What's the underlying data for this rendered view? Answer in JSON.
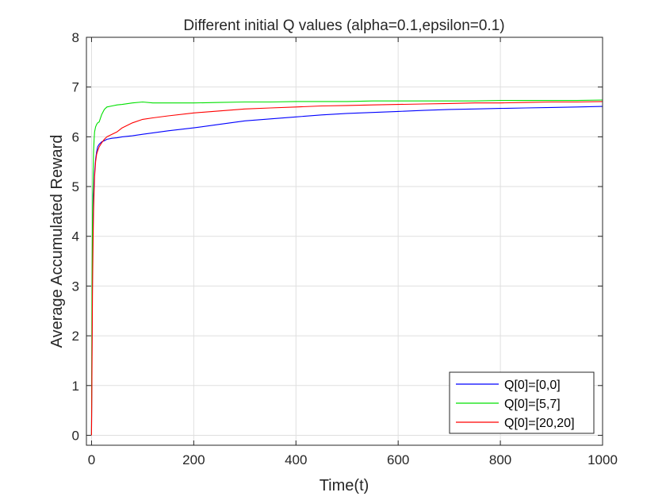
{
  "chart_data": {
    "type": "line",
    "title": "Different initial Q values (alpha=0.1,epsilon=0.1)",
    "xlabel": "Time(t)",
    "ylabel": "Average Accumulated Reward",
    "xlim": [
      -10,
      1000
    ],
    "ylim": [
      -0.2,
      8
    ],
    "xticks": [
      0,
      200,
      400,
      600,
      800,
      1000
    ],
    "yticks": [
      0,
      1,
      2,
      3,
      4,
      5,
      6,
      7,
      8
    ],
    "grid": true,
    "legend_position": "bottom-right",
    "series": [
      {
        "name": "Q[0]=[0,0]",
        "color": "#0000ff",
        "x": [
          0,
          1,
          2,
          3,
          4,
          5,
          6,
          8,
          10,
          12,
          15,
          20,
          25,
          30,
          40,
          50,
          60,
          80,
          100,
          120,
          150,
          200,
          250,
          300,
          350,
          400,
          450,
          500,
          550,
          600,
          650,
          700,
          750,
          800,
          850,
          900,
          950,
          1000
        ],
        "y": [
          0,
          2.0,
          3.4,
          4.3,
          4.8,
          5.1,
          5.3,
          5.55,
          5.7,
          5.8,
          5.85,
          5.9,
          5.92,
          5.95,
          5.97,
          5.98,
          6.0,
          6.02,
          6.05,
          6.08,
          6.12,
          6.18,
          6.25,
          6.32,
          6.36,
          6.4,
          6.44,
          6.47,
          6.49,
          6.51,
          6.53,
          6.55,
          6.56,
          6.57,
          6.58,
          6.59,
          6.6,
          6.61
        ]
      },
      {
        "name": "Q[0]=[5,7]",
        "color": "#00e000",
        "x": [
          0,
          1,
          2,
          3,
          4,
          5,
          6,
          8,
          10,
          12,
          15,
          20,
          25,
          30,
          40,
          50,
          60,
          80,
          100,
          120,
          150,
          200,
          250,
          300,
          350,
          400,
          450,
          500,
          550,
          600,
          650,
          700,
          750,
          800,
          850,
          900,
          950,
          1000
        ],
        "y": [
          0,
          3.0,
          4.6,
          5.3,
          5.7,
          5.95,
          6.1,
          6.2,
          6.25,
          6.28,
          6.3,
          6.45,
          6.55,
          6.6,
          6.62,
          6.64,
          6.65,
          6.68,
          6.7,
          6.68,
          6.68,
          6.68,
          6.69,
          6.7,
          6.7,
          6.71,
          6.71,
          6.71,
          6.72,
          6.72,
          6.72,
          6.72,
          6.72,
          6.73,
          6.73,
          6.73,
          6.73,
          6.74
        ]
      },
      {
        "name": "Q[0]=[20,20]",
        "color": "#ff0000",
        "x": [
          0,
          1,
          2,
          3,
          4,
          5,
          6,
          8,
          10,
          12,
          15,
          20,
          25,
          30,
          40,
          50,
          60,
          80,
          100,
          120,
          150,
          200,
          250,
          300,
          350,
          400,
          450,
          500,
          550,
          600,
          650,
          700,
          750,
          800,
          850,
          900,
          950,
          1000
        ],
        "y": [
          0,
          1.5,
          3.0,
          3.9,
          4.5,
          4.9,
          5.2,
          5.5,
          5.65,
          5.72,
          5.8,
          5.88,
          5.95,
          6.0,
          6.05,
          6.1,
          6.18,
          6.28,
          6.35,
          6.38,
          6.42,
          6.48,
          6.52,
          6.56,
          6.58,
          6.6,
          6.62,
          6.63,
          6.64,
          6.65,
          6.66,
          6.67,
          6.68,
          6.68,
          6.69,
          6.7,
          6.7,
          6.71
        ]
      }
    ]
  }
}
